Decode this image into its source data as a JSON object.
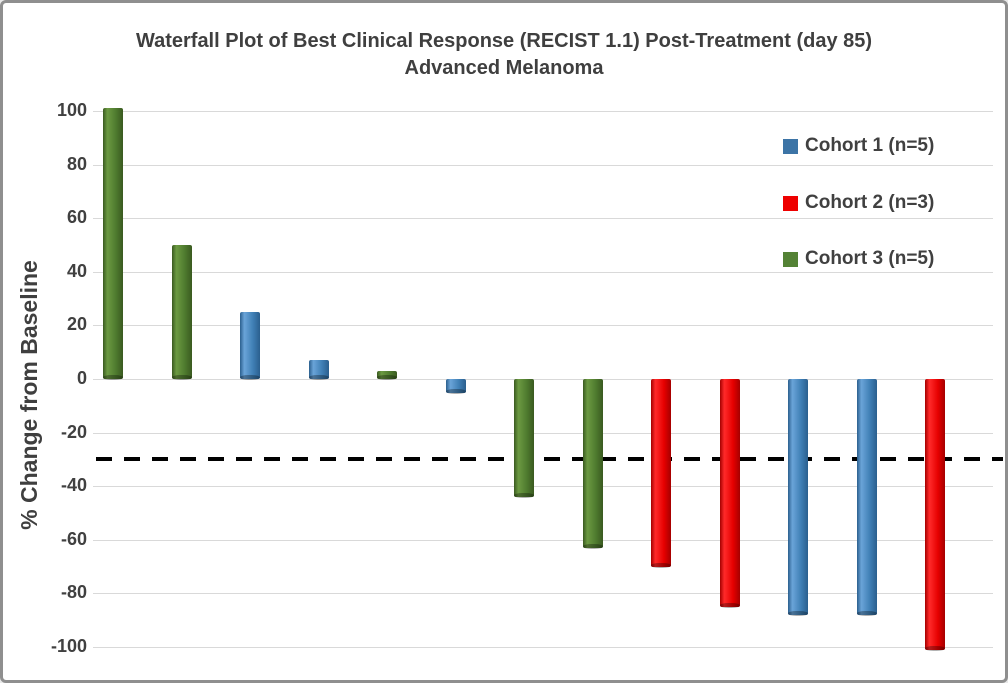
{
  "chart": {
    "title_line1": "Waterfall Plot of Best Clinical Response (RECIST 1.1) Post-Treatment  (day 85)",
    "title_line2": "Advanced Melanoma",
    "y_axis_title": "% Change from Baseline"
  },
  "chart_data": {
    "type": "bar",
    "title": "Waterfall Plot of Best Clinical Response (RECIST 1.1) Post-Treatment (day 85) Advanced Melanoma",
    "xlabel": "",
    "ylabel": "% Change from Baseline",
    "ylim": [
      -100,
      100
    ],
    "y_ticks": [
      100,
      80,
      60,
      40,
      20,
      0,
      -20,
      -40,
      -60,
      -80,
      -100
    ],
    "grid": true,
    "legend_position": "upper right",
    "legend": [
      "Cohort 1 (n=5)",
      "Cohort 2 (n=3)",
      "Cohort 3 (n=5)"
    ],
    "legend_marker_colors": [
      "#3c74a6",
      "#ee0000",
      "#548235"
    ],
    "reference_line": {
      "y": -30,
      "style": "dashed",
      "color": "#000000"
    },
    "colors": {
      "Cohort 1": {
        "base": "#3f7fb5",
        "light": "#6aa4d8",
        "dark": "#2b5f8e"
      },
      "Cohort 2": {
        "base": "#e60000",
        "light": "#ff2a2a",
        "dark": "#a50000"
      },
      "Cohort 3": {
        "base": "#4e7a2e",
        "light": "#6c9a42",
        "dark": "#3a5a20"
      }
    },
    "bars": [
      {
        "cohort": "Cohort 3",
        "value": 100
      },
      {
        "cohort": "Cohort 3",
        "value": 49
      },
      {
        "cohort": "Cohort 1",
        "value": 24
      },
      {
        "cohort": "Cohort 1",
        "value": 6
      },
      {
        "cohort": "Cohort 3",
        "value": 2
      },
      {
        "cohort": "Cohort 1",
        "value": -4
      },
      {
        "cohort": "Cohort 3",
        "value": -43
      },
      {
        "cohort": "Cohort 3",
        "value": -62
      },
      {
        "cohort": "Cohort 2",
        "value": -69
      },
      {
        "cohort": "Cohort 2",
        "value": -84
      },
      {
        "cohort": "Cohort 1",
        "value": -87
      },
      {
        "cohort": "Cohort 1",
        "value": -87
      },
      {
        "cohort": "Cohort 2",
        "value": -100
      }
    ]
  }
}
